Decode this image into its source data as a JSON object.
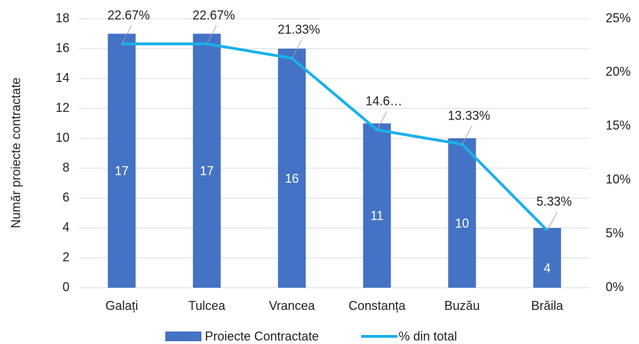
{
  "chart_data": {
    "type": "combo",
    "y_label": "Număr proiecte contractate",
    "categories": [
      "Galați",
      "Tulcea",
      "Vrancea",
      "Constanța",
      "Buzău",
      "Brăila"
    ],
    "series": [
      {
        "name": "Proiecte Contractate",
        "type": "bar",
        "color": "#4472c4",
        "values": [
          17,
          17,
          16,
          11,
          10,
          4
        ]
      },
      {
        "name": "% din total",
        "type": "line",
        "axis": "y2",
        "color": "#1ab0ea",
        "values": [
          22.67,
          22.67,
          21.33,
          14.67,
          13.33,
          5.33
        ],
        "value_labels": [
          "22.67%",
          "22.67%",
          "21.33%",
          "14.6…",
          "13.33%",
          "5.33%"
        ]
      }
    ],
    "ylim": [
      0,
      18
    ],
    "yticks": [
      0,
      2,
      4,
      6,
      8,
      10,
      12,
      14,
      16,
      18
    ],
    "y2lim": [
      0,
      25
    ],
    "y2ticks": [
      {
        "value": 0,
        "label": "0%"
      },
      {
        "value": 5,
        "label": "5%"
      },
      {
        "value": 10,
        "label": "10%"
      },
      {
        "value": 15,
        "label": "15%"
      },
      {
        "value": 20,
        "label": "20%"
      },
      {
        "value": 25,
        "label": "25%"
      }
    ],
    "grid": true,
    "legend": "bottom"
  }
}
